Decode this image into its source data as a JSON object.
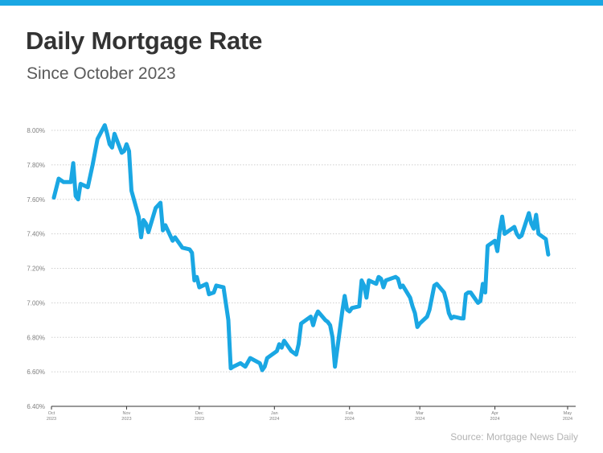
{
  "title": "Daily Mortgage Rate",
  "subtitle": "Since October 2023",
  "source": "Source: Mortgage News Daily",
  "colors": {
    "accent": "#1aa7e3",
    "line": "#1aa7e3",
    "grid": "#cfcfcf",
    "axis": "#333333",
    "tick_text": "#808080"
  },
  "chart_data": {
    "type": "line",
    "title": "Daily Mortgage Rate",
    "subtitle": "Since October 2023",
    "ylim": [
      6.4,
      8.0
    ],
    "y_ticks": [
      "8.00%",
      "7.80%",
      "7.60%",
      "7.40%",
      "7.20%",
      "7.00%",
      "6.80%",
      "6.60%",
      "6.40%"
    ],
    "y_tick_values": [
      8.0,
      7.8,
      7.6,
      7.4,
      7.2,
      7.0,
      6.8,
      6.6,
      6.4
    ],
    "x_ticks": [
      {
        "line1": "Oct",
        "line2": "2023",
        "date": "2023-10-01"
      },
      {
        "line1": "Nov",
        "line2": "2023",
        "date": "2023-11-01"
      },
      {
        "line1": "Dec",
        "line2": "2023",
        "date": "2023-12-01"
      },
      {
        "line1": "Jan",
        "line2": "2024",
        "date": "2024-01-01"
      },
      {
        "line1": "Feb",
        "line2": "2024",
        "date": "2024-02-01"
      },
      {
        "line1": "Mar",
        "line2": "2024",
        "date": "2024-03-01"
      },
      {
        "line1": "Apr",
        "line2": "2024",
        "date": "2024-04-01"
      },
      {
        "line1": "May",
        "line2": "2024",
        "date": "2024-05-01"
      }
    ],
    "grid": "horizontal-dotted",
    "series": [
      {
        "values": [
          [
            "2023-10-02",
            7.61
          ],
          [
            "2023-10-04",
            7.72
          ],
          [
            "2023-10-06",
            7.7
          ],
          [
            "2023-10-09",
            7.7
          ],
          [
            "2023-10-10",
            7.81
          ],
          [
            "2023-10-11",
            7.62
          ],
          [
            "2023-10-12",
            7.6
          ],
          [
            "2023-10-13",
            7.69
          ],
          [
            "2023-10-16",
            7.67
          ],
          [
            "2023-10-18",
            7.8
          ],
          [
            "2023-10-20",
            7.95
          ],
          [
            "2023-10-23",
            8.03
          ],
          [
            "2023-10-24",
            7.98
          ],
          [
            "2023-10-25",
            7.92
          ],
          [
            "2023-10-26",
            7.9
          ],
          [
            "2023-10-27",
            7.98
          ],
          [
            "2023-10-30",
            7.87
          ],
          [
            "2023-10-31",
            7.88
          ],
          [
            "2023-11-01",
            7.92
          ],
          [
            "2023-11-02",
            7.88
          ],
          [
            "2023-11-03",
            7.65
          ],
          [
            "2023-11-06",
            7.5
          ],
          [
            "2023-11-07",
            7.38
          ],
          [
            "2023-11-08",
            7.48
          ],
          [
            "2023-11-09",
            7.46
          ],
          [
            "2023-11-10",
            7.41
          ],
          [
            "2023-11-13",
            7.55
          ],
          [
            "2023-11-15",
            7.58
          ],
          [
            "2023-11-16",
            7.42
          ],
          [
            "2023-11-17",
            7.45
          ],
          [
            "2023-11-20",
            7.36
          ],
          [
            "2023-11-21",
            7.38
          ],
          [
            "2023-11-22",
            7.36
          ],
          [
            "2023-11-24",
            7.32
          ],
          [
            "2023-11-27",
            7.31
          ],
          [
            "2023-11-28",
            7.29
          ],
          [
            "2023-11-29",
            7.13
          ],
          [
            "2023-11-30",
            7.15
          ],
          [
            "2023-12-01",
            7.09
          ],
          [
            "2023-12-04",
            7.11
          ],
          [
            "2023-12-05",
            7.05
          ],
          [
            "2023-12-07",
            7.06
          ],
          [
            "2023-12-08",
            7.1
          ],
          [
            "2023-12-11",
            7.09
          ],
          [
            "2023-12-13",
            6.9
          ],
          [
            "2023-12-14",
            6.62
          ],
          [
            "2023-12-15",
            6.63
          ],
          [
            "2023-12-18",
            6.65
          ],
          [
            "2023-12-19",
            6.64
          ],
          [
            "2023-12-20",
            6.63
          ],
          [
            "2023-12-22",
            6.68
          ],
          [
            "2023-12-26",
            6.65
          ],
          [
            "2023-12-27",
            6.61
          ],
          [
            "2023-12-28",
            6.63
          ],
          [
            "2023-12-29",
            6.68
          ],
          [
            "2024-01-02",
            6.72
          ],
          [
            "2024-01-03",
            6.76
          ],
          [
            "2024-01-04",
            6.74
          ],
          [
            "2024-01-05",
            6.78
          ],
          [
            "2024-01-08",
            6.72
          ],
          [
            "2024-01-10",
            6.7
          ],
          [
            "2024-01-11",
            6.76
          ],
          [
            "2024-01-12",
            6.88
          ],
          [
            "2024-01-16",
            6.92
          ],
          [
            "2024-01-17",
            6.87
          ],
          [
            "2024-01-18",
            6.92
          ],
          [
            "2024-01-19",
            6.95
          ],
          [
            "2024-01-22",
            6.9
          ],
          [
            "2024-01-23",
            6.89
          ],
          [
            "2024-01-24",
            6.87
          ],
          [
            "2024-01-25",
            6.8
          ],
          [
            "2024-01-26",
            6.63
          ],
          [
            "2024-01-29",
            6.95
          ],
          [
            "2024-01-30",
            7.04
          ],
          [
            "2024-01-31",
            6.96
          ],
          [
            "2024-02-01",
            6.95
          ],
          [
            "2024-02-02",
            6.97
          ],
          [
            "2024-02-05",
            6.98
          ],
          [
            "2024-02-06",
            7.13
          ],
          [
            "2024-02-07",
            7.1
          ],
          [
            "2024-02-08",
            7.03
          ],
          [
            "2024-02-09",
            7.13
          ],
          [
            "2024-02-12",
            7.11
          ],
          [
            "2024-02-13",
            7.15
          ],
          [
            "2024-02-14",
            7.14
          ],
          [
            "2024-02-15",
            7.09
          ],
          [
            "2024-02-16",
            7.13
          ],
          [
            "2024-02-20",
            7.15
          ],
          [
            "2024-02-21",
            7.14
          ],
          [
            "2024-02-22",
            7.09
          ],
          [
            "2024-02-23",
            7.1
          ],
          [
            "2024-02-26",
            7.03
          ],
          [
            "2024-02-27",
            6.98
          ],
          [
            "2024-02-28",
            6.94
          ],
          [
            "2024-02-29",
            6.86
          ],
          [
            "2024-03-01",
            6.88
          ],
          [
            "2024-03-04",
            6.92
          ],
          [
            "2024-03-05",
            6.96
          ],
          [
            "2024-03-06",
            7.03
          ],
          [
            "2024-03-07",
            7.1
          ],
          [
            "2024-03-08",
            7.11
          ],
          [
            "2024-03-11",
            7.06
          ],
          [
            "2024-03-12",
            7.01
          ],
          [
            "2024-03-13",
            6.94
          ],
          [
            "2024-03-14",
            6.91
          ],
          [
            "2024-03-15",
            6.92
          ],
          [
            "2024-03-18",
            6.91
          ],
          [
            "2024-03-19",
            6.91
          ],
          [
            "2024-03-20",
            7.05
          ],
          [
            "2024-03-21",
            7.06
          ],
          [
            "2024-03-22",
            7.06
          ],
          [
            "2024-03-25",
            7.0
          ],
          [
            "2024-03-26",
            7.01
          ],
          [
            "2024-03-27",
            7.11
          ],
          [
            "2024-03-28",
            7.06
          ],
          [
            "2024-03-29",
            7.33
          ],
          [
            "2024-04-01",
            7.36
          ],
          [
            "2024-04-02",
            7.3
          ],
          [
            "2024-04-03",
            7.42
          ],
          [
            "2024-04-04",
            7.5
          ],
          [
            "2024-04-05",
            7.4
          ],
          [
            "2024-04-08",
            7.43
          ],
          [
            "2024-04-09",
            7.44
          ],
          [
            "2024-04-10",
            7.4
          ],
          [
            "2024-04-11",
            7.38
          ],
          [
            "2024-04-12",
            7.39
          ],
          [
            "2024-04-15",
            7.52
          ],
          [
            "2024-04-16",
            7.46
          ],
          [
            "2024-04-17",
            7.43
          ],
          [
            "2024-04-18",
            7.51
          ],
          [
            "2024-04-19",
            7.4
          ],
          [
            "2024-04-22",
            7.37
          ],
          [
            "2024-04-23",
            7.28
          ]
        ]
      }
    ]
  }
}
